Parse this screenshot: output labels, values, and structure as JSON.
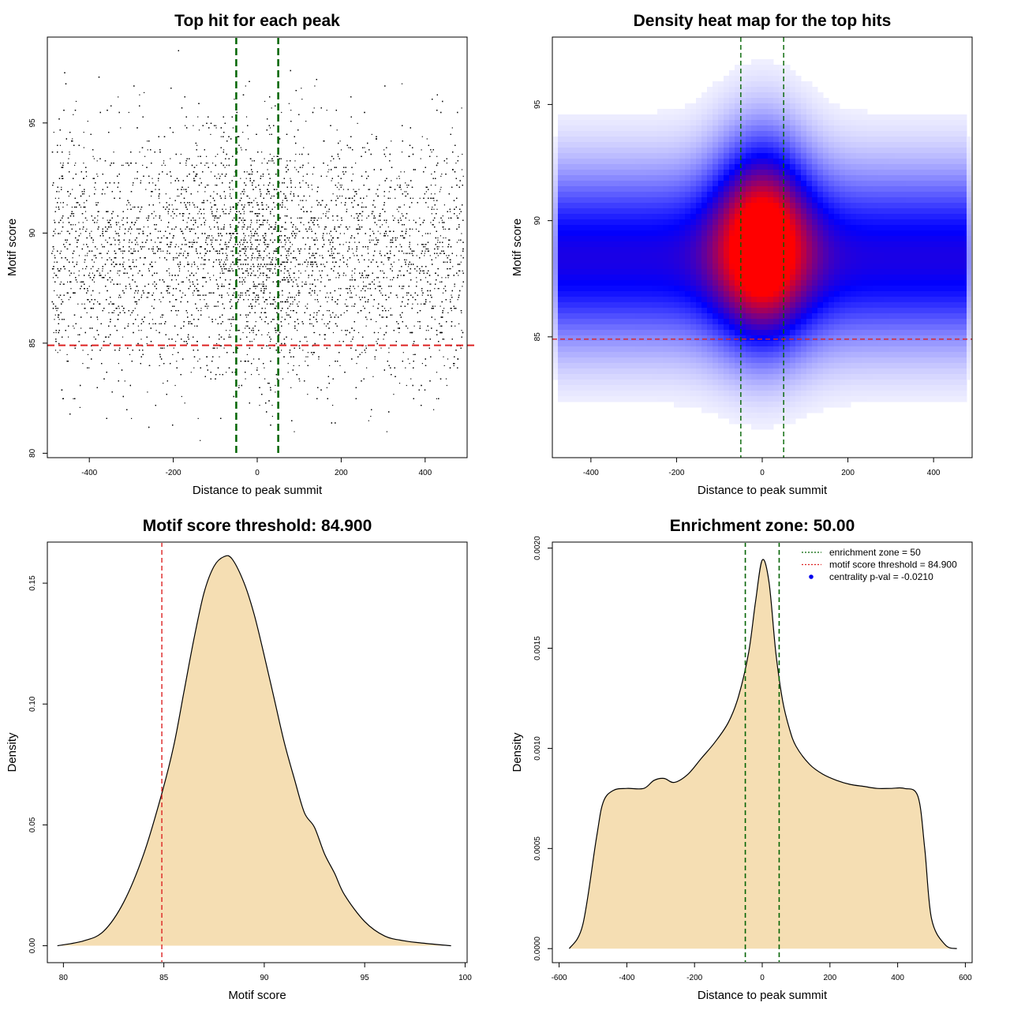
{
  "chart_data": [
    {
      "type": "scatter",
      "title": "Top hit for each peak",
      "xlabel": "Distance to peak summit",
      "ylabel": "Motif score",
      "xlim": [
        -500,
        500
      ],
      "ylim": [
        79.8,
        98.9
      ],
      "xticks": [
        -400,
        -200,
        0,
        200,
        400
      ],
      "yticks": [
        80,
        85,
        90,
        95
      ],
      "x_range_points": [
        -490,
        490
      ],
      "score_center": 89.0,
      "score_spread": 2.8,
      "score_range": [
        80.5,
        98.6
      ],
      "estimated_point_count": 14000,
      "vlines": [
        -50,
        50
      ],
      "hline": 84.9,
      "colors": {
        "points": "#000000",
        "vlines": "#006400",
        "hline": "#dd2222"
      }
    },
    {
      "type": "heatmap",
      "title": "Density heat map for the top hits",
      "xlabel": "Distance to peak summit",
      "ylabel": "Motif score",
      "xlim": [
        -490,
        490
      ],
      "ylim": [
        79.8,
        97.9
      ],
      "xticks": [
        -400,
        -200,
        0,
        200,
        400
      ],
      "yticks": [
        85,
        90,
        95
      ],
      "peak": {
        "x": 0,
        "y": 88.9
      },
      "vlines": [
        -50,
        50
      ],
      "hline": 84.9,
      "colors": {
        "low": "#ffffff",
        "mid": "#0000ff",
        "high": "#ff0000",
        "vlines": "#006400",
        "hline": "#dd2222"
      }
    },
    {
      "type": "area",
      "title": "Motif score threshold: 84.900",
      "xlabel": "Motif score",
      "ylabel": "Density",
      "xlim": [
        79.2,
        100.1
      ],
      "ylim": [
        -0.007,
        0.167
      ],
      "xticks": [
        80,
        85,
        90,
        95,
        100
      ],
      "yticks": [
        0.0,
        0.05,
        0.1,
        0.15
      ],
      "ytick_labels": [
        "0.00",
        "0.05",
        "0.10",
        "0.15"
      ],
      "x": [
        79.7,
        81.0,
        82.0,
        83.0,
        84.0,
        84.9,
        85.5,
        86.0,
        86.5,
        87.0,
        87.5,
        88.0,
        88.4,
        89.0,
        89.5,
        90.0,
        90.5,
        91.0,
        91.5,
        92.0,
        92.5,
        93.0,
        93.5,
        94.0,
        95.0,
        96.0,
        97.0,
        98.0,
        99.3
      ],
      "y": [
        0.0,
        0.002,
        0.006,
        0.018,
        0.038,
        0.063,
        0.083,
        0.105,
        0.127,
        0.146,
        0.157,
        0.161,
        0.16,
        0.15,
        0.137,
        0.12,
        0.102,
        0.084,
        0.069,
        0.055,
        0.049,
        0.038,
        0.03,
        0.021,
        0.01,
        0.004,
        0.002,
        0.001,
        0.0
      ],
      "vline": 84.9,
      "colors": {
        "fill": "#f5deb3",
        "line": "#000000",
        "vline": "#dd2222"
      }
    },
    {
      "type": "area",
      "title": "Enrichment zone: 50.00",
      "xlabel": "Distance to peak summit",
      "ylabel": "Density",
      "xlim": [
        -620,
        620
      ],
      "ylim": [
        -7e-05,
        0.00203
      ],
      "xticks": [
        -600,
        -400,
        -200,
        0,
        200,
        400,
        600
      ],
      "yticks": [
        0.0,
        0.0005,
        0.001,
        0.0015,
        0.002
      ],
      "ytick_labels": [
        "0.0000",
        "0.0005",
        "0.0010",
        "0.0015",
        "0.0020"
      ],
      "x": [
        -570,
        -530,
        -490,
        -470,
        -440,
        -400,
        -350,
        -320,
        -290,
        -260,
        -220,
        -180,
        -140,
        -100,
        -70,
        -40,
        -20,
        0,
        20,
        40,
        60,
        80,
        100,
        140,
        180,
        220,
        260,
        300,
        340,
        380,
        420,
        460,
        480,
        500,
        540,
        575
      ],
      "y": [
        0.0,
        0.00012,
        0.00055,
        0.00073,
        0.00079,
        0.0008,
        0.0008,
        0.00084,
        0.00085,
        0.00083,
        0.00087,
        0.00095,
        0.00103,
        0.00113,
        0.00126,
        0.00148,
        0.00173,
        0.00194,
        0.00183,
        0.00148,
        0.00124,
        0.0011,
        0.00101,
        0.00092,
        0.00087,
        0.00084,
        0.00082,
        0.00081,
        0.0008,
        0.0008,
        0.0008,
        0.00076,
        0.0005,
        0.00015,
        2e-05,
        0.0
      ],
      "vlines": [
        -50,
        50
      ],
      "legend": {
        "position": "top-right",
        "items": [
          {
            "label": "enrichment zone = 50",
            "style": "dotted",
            "color": "#006400"
          },
          {
            "label": "motif score threshold = 84.900",
            "style": "dotted",
            "color": "#dd2222"
          },
          {
            "label": "centrality p-val = -0.0210",
            "style": "point",
            "color": "#0000ee"
          }
        ]
      },
      "colors": {
        "fill": "#f5deb3",
        "line": "#000000",
        "vlines": "#006400"
      }
    }
  ]
}
